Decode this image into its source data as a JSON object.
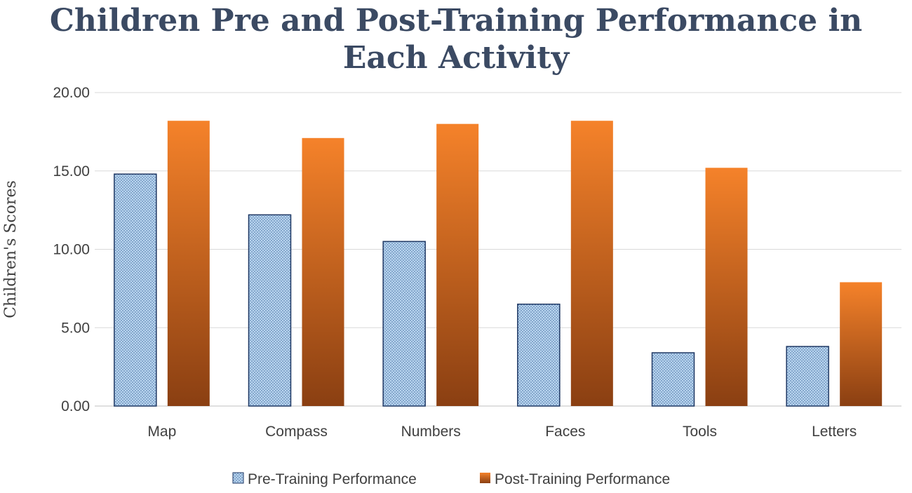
{
  "chart_data": {
    "type": "bar",
    "title": [
      "Children Pre and Post-Training Performance in",
      "Each Activity"
    ],
    "xlabel": "",
    "ylabel": "Children's Scores",
    "ylim": [
      0,
      20
    ],
    "yticks": [
      "0.00",
      "5.00",
      "10.00",
      "15.00",
      "20.00"
    ],
    "ytick_values": [
      0,
      5,
      10,
      15,
      20
    ],
    "grid": true,
    "legend_position": "bottom",
    "categories": [
      "Map",
      "Compass",
      "Numbers",
      "Faces",
      "Tools",
      "Letters"
    ],
    "series": [
      {
        "name": "Pre-Training Performance",
        "values": [
          14.8,
          12.2,
          10.5,
          6.5,
          3.4,
          3.8
        ],
        "color": "#a9cbe9",
        "border": "#1f3864",
        "pattern": "dotted"
      },
      {
        "name": "Post-Training Performance",
        "values": [
          18.2,
          17.1,
          18.0,
          18.2,
          15.2,
          7.9
        ],
        "color_top": "#f5822a",
        "color_bottom": "#8a3f12",
        "pattern": "gradient"
      }
    ]
  }
}
